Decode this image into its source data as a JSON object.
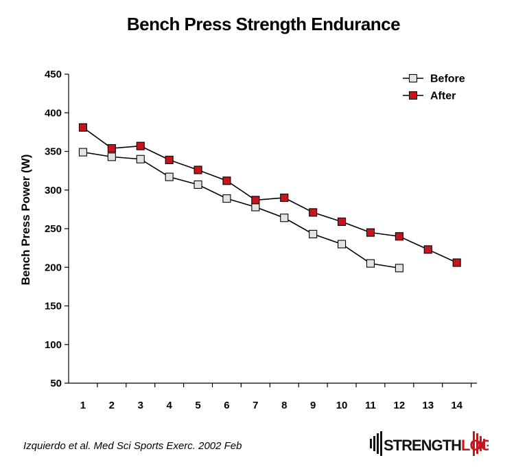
{
  "chart_data": {
    "type": "line",
    "title": "Bench Press Strength Endurance",
    "xlabel": "",
    "ylabel": "Bench Press Power (W)",
    "x": [
      1,
      2,
      3,
      4,
      5,
      6,
      7,
      8,
      9,
      10,
      11,
      12,
      13,
      14
    ],
    "xlim": [
      0.5,
      14.7
    ],
    "ylim": [
      50,
      450
    ],
    "yticks": [
      50,
      100,
      150,
      200,
      250,
      300,
      350,
      400,
      450
    ],
    "grid": false,
    "legend": "top-right",
    "series": [
      {
        "name": "Before",
        "color": "#e3e3e3",
        "x": [
          1,
          2,
          3,
          4,
          5,
          6,
          7,
          8,
          9,
          10,
          11,
          12
        ],
        "values": [
          349,
          343,
          340,
          317,
          307,
          289,
          278,
          264,
          243,
          230,
          205,
          199
        ]
      },
      {
        "name": "After",
        "color": "#c4161c",
        "x": [
          1,
          2,
          3,
          4,
          5,
          6,
          7,
          8,
          9,
          10,
          11,
          12,
          13,
          14
        ],
        "values": [
          381,
          354,
          357,
          339,
          326,
          312,
          287,
          290,
          271,
          259,
          245,
          240,
          223,
          206
        ]
      }
    ]
  },
  "citation": "Izquierdo et al. Med Sci Sports Exerc. 2002 Feb",
  "logo": {
    "text_main": "STRENGTH",
    "text_accent": "LOG",
    "accent_color": "#c4161c"
  }
}
